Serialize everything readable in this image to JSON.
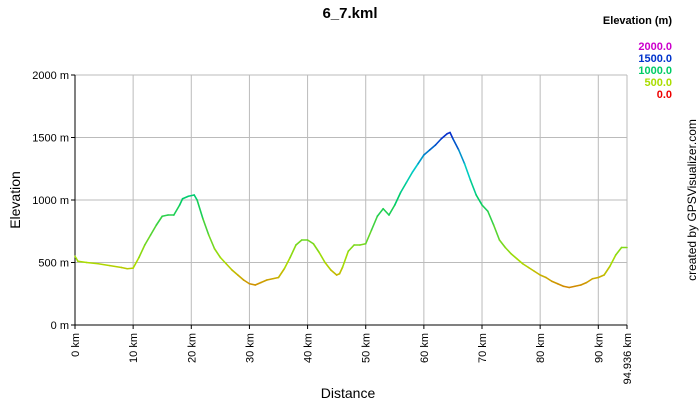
{
  "chart_data": {
    "type": "line",
    "title": "6_7.kml",
    "xlabel": "Distance",
    "ylabel": "Elevation",
    "xlim": [
      0,
      94.936
    ],
    "ylim": [
      0,
      2000
    ],
    "x_unit": "km",
    "y_unit": "m",
    "x_ticks": [
      "0 km",
      "10 km",
      "20 km",
      "30 km",
      "40 km",
      "50 km",
      "60 km",
      "70 km",
      "80 km",
      "90 km",
      "94.936 km"
    ],
    "x_tick_values": [
      0,
      10,
      20,
      30,
      40,
      50,
      60,
      70,
      80,
      90,
      94.936
    ],
    "y_ticks": [
      "0 m",
      "500 m",
      "1000 m",
      "1500 m",
      "2000 m"
    ],
    "y_tick_values": [
      0,
      500,
      1000,
      1500,
      2000
    ],
    "grid": true,
    "legend": {
      "title": "Elevation (m)",
      "placement": "top-right",
      "items": [
        {
          "label": "2000.0",
          "color": "#cc00cc"
        },
        {
          "label": "1500.0",
          "color": "#0033cc"
        },
        {
          "label": "1000.0",
          "color": "#00cc66"
        },
        {
          "label": "500.0",
          "color": "#aadd00"
        },
        {
          "label": "0.0",
          "color": "#ee0000"
        }
      ]
    },
    "credit": "created by GPSVisualizer.com",
    "x": [
      0,
      0.5,
      2,
      4,
      6,
      8,
      9,
      10,
      11,
      12,
      13,
      14,
      15,
      16,
      17,
      18,
      18.5,
      19.5,
      20.5,
      21,
      22,
      23,
      24,
      25,
      26,
      27,
      28,
      29,
      30,
      31,
      32,
      33,
      34,
      35,
      36,
      37,
      38,
      39,
      40,
      41,
      42,
      43,
      44,
      45,
      45.5,
      46,
      47,
      48,
      49,
      50,
      51,
      52,
      53,
      54,
      55,
      56,
      57,
      58,
      59,
      60,
      61,
      62,
      63,
      64,
      64.5,
      65,
      66,
      67,
      68,
      69,
      70,
      71,
      72,
      73,
      74,
      75,
      76,
      77,
      78,
      79,
      80,
      81,
      82,
      83,
      84,
      85,
      86,
      87,
      88,
      89,
      90,
      91,
      92,
      93,
      94,
      94.936
    ],
    "series": [
      {
        "values": [
          550,
          510,
          500,
          490,
          475,
          460,
          450,
          455,
          540,
          640,
          720,
          800,
          870,
          880,
          880,
          960,
          1010,
          1030,
          1040,
          1000,
          850,
          720,
          610,
          540,
          490,
          440,
          400,
          360,
          330,
          320,
          340,
          360,
          370,
          380,
          450,
          540,
          640,
          680,
          680,
          650,
          580,
          500,
          440,
          400,
          410,
          460,
          590,
          640,
          640,
          650,
          760,
          870,
          930,
          880,
          960,
          1060,
          1140,
          1220,
          1290,
          1360,
          1400,
          1440,
          1490,
          1530,
          1540,
          1490,
          1400,
          1290,
          1160,
          1040,
          960,
          910,
          800,
          680,
          620,
          570,
          530,
          490,
          460,
          430,
          400,
          380,
          350,
          330,
          310,
          300,
          310,
          320,
          340,
          370,
          380,
          400,
          470,
          560,
          620,
          620
        ]
      }
    ]
  }
}
